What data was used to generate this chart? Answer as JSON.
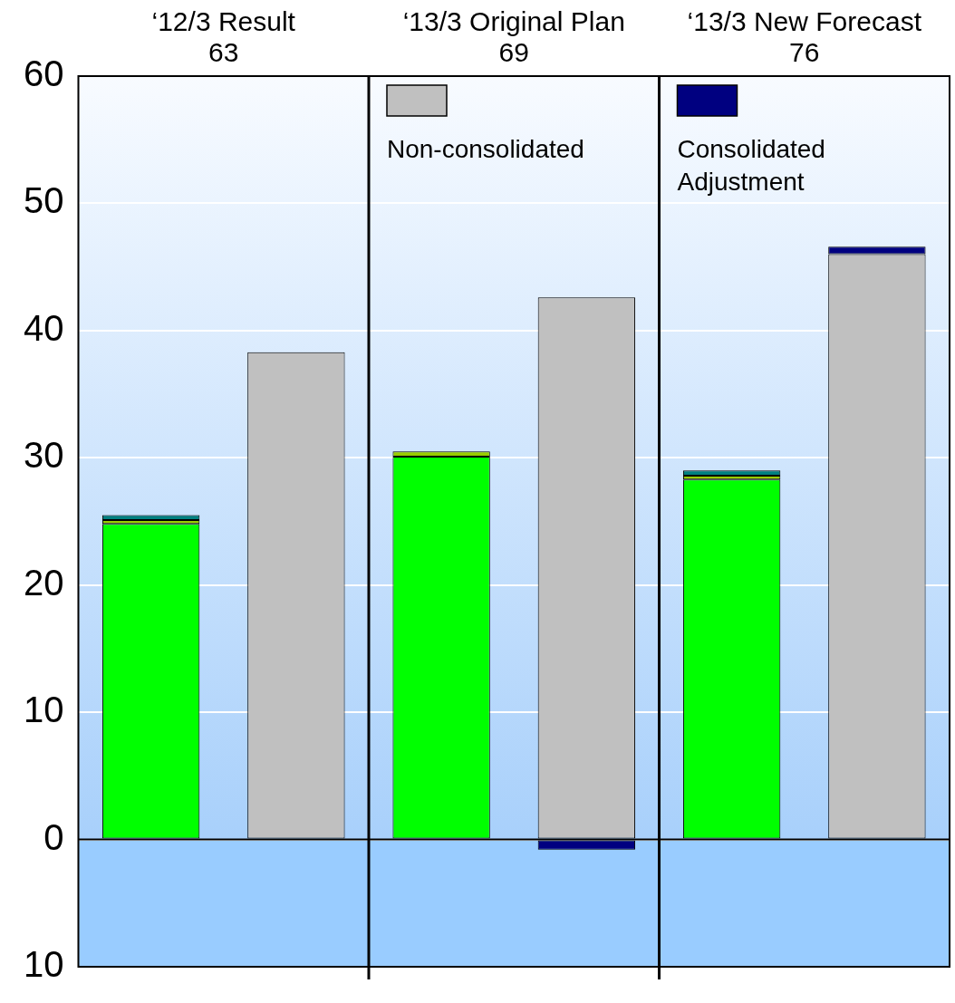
{
  "chart_data": {
    "type": "bar",
    "stacked": true,
    "categories": [
      null,
      null,
      null,
      null,
      null,
      null
    ],
    "series": [
      {
        "color": "#00ff00",
        "values": [
          24.8,
          null,
          30.1,
          null,
          28.3,
          null
        ]
      },
      {
        "color": "#99cc00",
        "values": [
          0.3,
          null,
          0.4,
          null,
          0.3,
          null
        ]
      },
      {
        "color": "#008080",
        "values": [
          0.4,
          null,
          null,
          null,
          0.4,
          null
        ]
      },
      {
        "name": "Non-consolidated",
        "color": "#c0c0c0",
        "values": [
          null,
          38.3,
          null,
          42.6,
          null,
          46.0
        ]
      },
      {
        "name": "Consolidated Adjustment",
        "color": "#000080",
        "values": [
          null,
          null,
          null,
          -0.8,
          null,
          0.6
        ]
      }
    ],
    "annotations": [
      "‘12/3 Result\n63",
      "‘13/3 Original Plan\n69",
      "‘13/3 New Forecast\n76"
    ],
    "ylim": [
      -10,
      60
    ],
    "yticks": [
      {
        "value": -10,
        "label": "10"
      },
      0,
      10,
      20,
      30,
      40,
      50,
      60
    ],
    "grid": "y",
    "legend": "top"
  }
}
